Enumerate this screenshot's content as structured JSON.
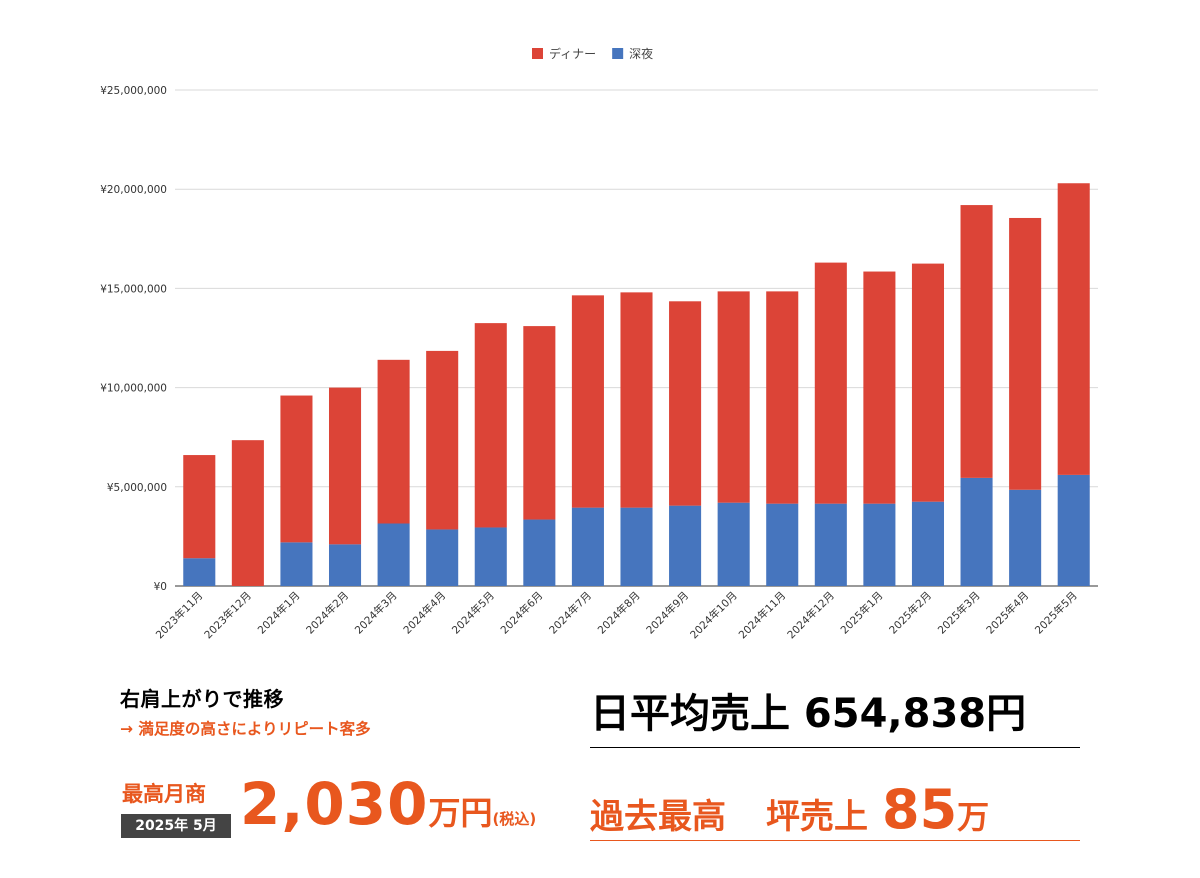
{
  "chart_data": {
    "type": "bar",
    "stacked": true,
    "categories": [
      "2023年11月",
      "2023年12月",
      "2024年1月",
      "2024年2月",
      "2024年3月",
      "2024年4月",
      "2024年5月",
      "2024年6月",
      "2024年7月",
      "2024年8月",
      "2024年9月",
      "2024年10月",
      "2024年11月",
      "2024年12月",
      "2025年1月",
      "2025年2月",
      "2025年3月",
      "2025年4月",
      "2025年5月"
    ],
    "series": [
      {
        "name": "深夜",
        "color": "#4675be",
        "values": [
          1400000,
          0,
          2200000,
          2100000,
          3150000,
          2850000,
          2950000,
          3350000,
          3950000,
          3950000,
          4050000,
          4200000,
          4150000,
          4150000,
          4150000,
          4250000,
          5450000,
          4850000,
          5600000
        ]
      },
      {
        "name": "ディナー",
        "color": "#dc4437",
        "values": [
          5200000,
          7350000,
          7400000,
          7900000,
          8250000,
          9000000,
          10300000,
          9750000,
          10700000,
          10850000,
          10300000,
          10650000,
          10700000,
          12150000,
          11700000,
          12000000,
          13750000,
          13700000,
          14700000
        ]
      }
    ],
    "legend_order": [
      "ディナー",
      "深夜"
    ],
    "legend_position": "top-center",
    "ylim": [
      0,
      25000000
    ],
    "yticks": [
      0,
      5000000,
      10000000,
      15000000,
      20000000,
      25000000
    ],
    "ytick_labels": [
      "¥0",
      "¥5,000,000",
      "¥10,000,000",
      "¥15,000,000",
      "¥20,000,000",
      "¥25,000,000"
    ],
    "grid": true,
    "title": "",
    "xlabel": "",
    "ylabel": ""
  },
  "summary": {
    "headline": "右肩上がりで推移",
    "subline": "→ 満足度の高さによりリピート客多",
    "max_label": "最高月商",
    "max_date": "2025年 5月",
    "max_value": "2,030",
    "max_unit": "万円",
    "max_tax": "(税込)",
    "daily": "日平均売上 654,838円",
    "record_label": "過去最高",
    "tsubo_label": "坪売上",
    "tsubo_value": "85",
    "tsubo_unit": "万"
  },
  "colors": {
    "accent": "#e8571e",
    "dinner": "#dc4437",
    "late_night": "#4675be"
  }
}
